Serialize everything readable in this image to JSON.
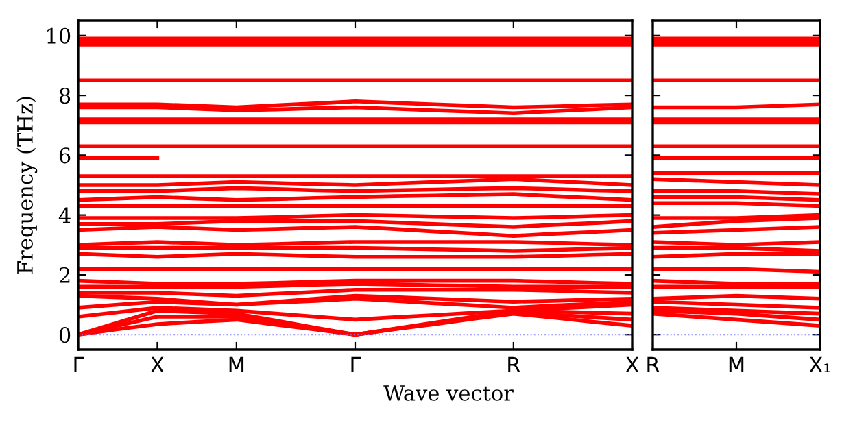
{
  "chart_data": [
    {
      "type": "line",
      "ylabel": "Frequency (THz)",
      "xlabel": "Wave vector",
      "categories": [
        "Γ",
        null,
        "X",
        null,
        "M",
        null,
        null,
        "Γ",
        null,
        null,
        null,
        "R",
        null,
        null,
        "X"
      ],
      "ylim": [
        -0.5,
        10.5
      ],
      "yticks": [
        0,
        2,
        4,
        6,
        8,
        10
      ],
      "marker": "none",
      "line_style": "solid",
      "grid": false,
      "legend": false,
      "ref_lines": [
        {
          "axis": "y",
          "value": 0,
          "color": "#8080ff",
          "line_style": "dotted"
        }
      ],
      "series": [
        {
          "color": "#ff0000",
          "values": [
            0,
            0.18,
            0.35,
            0.43,
            0.5,
            0.33,
            0.17,
            0,
            0.18,
            0.35,
            0.53,
            0.7,
            0.57,
            0.43,
            0.3
          ]
        },
        {
          "color": "#ff0000",
          "values": [
            0,
            0.3,
            0.6,
            0.6,
            0.6,
            0.4,
            0.2,
            0,
            0.19,
            0.38,
            0.56,
            0.75,
            0.67,
            0.58,
            0.5
          ]
        },
        {
          "color": "#ff0000",
          "values": [
            0,
            0.4,
            0.8,
            0.75,
            0.7,
            0.47,
            0.23,
            0,
            0.2,
            0.4,
            0.6,
            0.8,
            0.77,
            0.73,
            0.7
          ]
        },
        {
          "color": "#ff0000",
          "values": [
            0.6,
            0.75,
            0.9,
            0.85,
            0.8,
            0.7,
            0.6,
            0.5,
            0.58,
            0.65,
            0.73,
            0.8,
            0.87,
            0.93,
            1.0
          ]
        },
        {
          "color": "#ff0000",
          "values": [
            0.9,
            1.0,
            1.1,
            1.05,
            1.0,
            1.07,
            1.13,
            1.2,
            1.13,
            1.05,
            0.98,
            0.9,
            0.97,
            1.03,
            1.1
          ]
        },
        {
          "color": "#ff0000",
          "values": [
            1.3,
            1.25,
            1.2,
            1.1,
            1.0,
            1.1,
            1.2,
            1.3,
            1.25,
            1.2,
            1.15,
            1.1,
            1.13,
            1.17,
            1.2
          ]
        },
        {
          "color": "#ff0000",
          "values": [
            1.4,
            1.4,
            1.4,
            1.35,
            1.3,
            1.37,
            1.43,
            1.5,
            1.5,
            1.5,
            1.5,
            1.5,
            1.47,
            1.43,
            1.4
          ]
        },
        {
          "color": "#ff0000",
          "values": [
            1.6,
            1.6,
            1.6,
            1.6,
            1.6,
            1.63,
            1.67,
            1.7,
            1.68,
            1.65,
            1.63,
            1.6,
            1.6,
            1.6,
            1.6
          ]
        },
        {
          "color": "#ff0000",
          "values": [
            1.8,
            1.75,
            1.7,
            1.7,
            1.7,
            1.73,
            1.77,
            1.8,
            1.8,
            1.8,
            1.8,
            1.8,
            1.77,
            1.73,
            1.7
          ]
        },
        {
          "color": "#ff0000",
          "values": [
            2.2,
            2.2,
            2.2,
            2.2,
            2.2,
            2.2,
            2.2,
            2.2,
            2.2,
            2.2,
            2.2,
            2.2,
            2.2,
            2.2,
            2.2
          ]
        },
        {
          "color": "#ff0000",
          "values": [
            2.7,
            2.65,
            2.6,
            2.65,
            2.7,
            2.67,
            2.63,
            2.6,
            2.6,
            2.6,
            2.6,
            2.6,
            2.63,
            2.67,
            2.7
          ]
        },
        {
          "color": "#ff0000",
          "values": [
            2.9,
            2.9,
            2.9,
            2.9,
            2.9,
            2.9,
            2.9,
            2.9,
            2.88,
            2.85,
            2.83,
            2.8,
            2.83,
            2.87,
            2.9
          ]
        },
        {
          "color": "#ff0000",
          "values": [
            3.0,
            3.05,
            3.1,
            3.05,
            3.0,
            3.03,
            3.07,
            3.1,
            3.1,
            3.1,
            3.1,
            3.1,
            3.07,
            3.03,
            3.0
          ]
        },
        {
          "color": "#ff0000",
          "values": [
            3.5,
            3.55,
            3.6,
            3.55,
            3.5,
            3.53,
            3.57,
            3.6,
            3.53,
            3.45,
            3.38,
            3.3,
            3.37,
            3.43,
            3.5
          ]
        },
        {
          "color": "#ff0000",
          "values": [
            3.7,
            3.7,
            3.7,
            3.75,
            3.8,
            3.8,
            3.8,
            3.8,
            3.75,
            3.7,
            3.65,
            3.6,
            3.67,
            3.73,
            3.8
          ]
        },
        {
          "color": "#ff0000",
          "values": [
            3.9,
            3.9,
            3.9,
            3.9,
            3.9,
            3.93,
            3.97,
            4.0,
            3.98,
            3.95,
            3.93,
            3.9,
            3.93,
            3.97,
            4.0
          ]
        },
        {
          "color": "#ff0000",
          "values": [
            4.3,
            4.3,
            4.3,
            4.3,
            4.3,
            4.3,
            4.3,
            4.3,
            4.3,
            4.3,
            4.3,
            4.3,
            4.3,
            4.3,
            4.3
          ]
        },
        {
          "color": "#ff0000",
          "values": [
            4.5,
            4.55,
            4.6,
            4.55,
            4.5,
            4.53,
            4.57,
            4.6,
            4.63,
            4.65,
            4.68,
            4.7,
            4.63,
            4.57,
            4.5
          ]
        },
        {
          "color": "#ff0000",
          "values": [
            4.8,
            4.8,
            4.8,
            4.85,
            4.9,
            4.87,
            4.83,
            4.8,
            4.83,
            4.85,
            4.88,
            4.9,
            4.87,
            4.83,
            4.8
          ]
        },
        {
          "color": "#ff0000",
          "values": [
            5.0,
            5.0,
            5.0,
            5.05,
            5.1,
            5.07,
            5.03,
            5.0,
            5.05,
            5.1,
            5.15,
            5.2,
            5.13,
            5.07,
            5.0
          ]
        },
        {
          "color": "#ff0000",
          "values": [
            5.3,
            5.3,
            5.3,
            5.3,
            5.3,
            5.3,
            5.3,
            5.3,
            5.3,
            5.3,
            5.3,
            5.3,
            5.3,
            5.3,
            5.3
          ]
        },
        {
          "color": "#ff0000",
          "values": [
            5.9,
            5.9,
            5.9,
            null,
            null,
            null,
            null,
            null,
            null,
            null,
            null,
            null,
            null,
            null,
            null
          ]
        },
        {
          "color": "#ff0000",
          "values": [
            6.3,
            6.3,
            6.3,
            6.3,
            6.3,
            6.3,
            6.3,
            6.3,
            6.3,
            6.3,
            6.3,
            6.3,
            6.3,
            6.3,
            6.3
          ]
        },
        {
          "color": "#ff0000",
          "values": [
            7.1,
            7.1,
            7.1,
            7.1,
            7.1,
            7.1,
            7.1,
            7.1,
            7.1,
            7.1,
            7.1,
            7.1,
            7.1,
            7.1,
            7.1
          ]
        },
        {
          "color": "#ff0000",
          "values": [
            7.2,
            7.2,
            7.2,
            7.2,
            7.2,
            7.2,
            7.2,
            7.2,
            7.2,
            7.2,
            7.2,
            7.2,
            7.2,
            7.2,
            7.2
          ]
        },
        {
          "color": "#ff0000",
          "values": [
            7.6,
            7.6,
            7.6,
            7.55,
            7.5,
            7.53,
            7.57,
            7.6,
            7.55,
            7.5,
            7.45,
            7.4,
            7.47,
            7.53,
            7.6
          ]
        },
        {
          "color": "#ff0000",
          "values": [
            7.7,
            7.7,
            7.7,
            7.65,
            7.6,
            7.67,
            7.73,
            7.8,
            7.75,
            7.7,
            7.65,
            7.6,
            7.63,
            7.67,
            7.7
          ]
        },
        {
          "color": "#ff0000",
          "values": [
            8.5,
            8.5,
            8.5,
            8.5,
            8.5,
            8.5,
            8.5,
            8.5,
            8.5,
            8.5,
            8.5,
            8.5,
            8.5,
            8.5,
            8.5
          ]
        },
        {
          "color": "#ff0000",
          "values": [
            9.7,
            9.7,
            9.7,
            9.7,
            9.7,
            9.7,
            9.7,
            9.7,
            9.7,
            9.7,
            9.7,
            9.7,
            9.7,
            9.7,
            9.7
          ]
        },
        {
          "color": "#ff0000",
          "values": [
            9.8,
            9.8,
            9.8,
            9.8,
            9.8,
            9.8,
            9.8,
            9.8,
            9.8,
            9.8,
            9.8,
            9.8,
            9.8,
            9.8,
            9.8
          ]
        },
        {
          "color": "#ff0000",
          "values": [
            9.9,
            9.9,
            9.9,
            9.9,
            9.9,
            9.9,
            9.9,
            9.9,
            9.9,
            9.9,
            9.9,
            9.9,
            9.9,
            9.9,
            9.9
          ]
        }
      ]
    },
    {
      "type": "line",
      "categories": [
        "R",
        "M",
        "X₁"
      ],
      "ylim": [
        -0.5,
        10.5
      ],
      "yticks": [
        0,
        2,
        4,
        6,
        8,
        10
      ],
      "tick_labels": "x",
      "marker": "none",
      "line_style": "solid",
      "grid": false,
      "legend": false,
      "ref_lines": [
        {
          "axis": "y",
          "value": 0,
          "color": "#8080ff",
          "line_style": "dotted"
        }
      ],
      "series": [
        {
          "color": "#ff0000",
          "values": [
            0.7,
            0.5,
            0.3
          ]
        },
        {
          "color": "#ff0000",
          "values": [
            0.8,
            0.7,
            0.5
          ]
        },
        {
          "color": "#ff0000",
          "values": [
            0.9,
            0.8,
            0.7
          ]
        },
        {
          "color": "#ff0000",
          "values": [
            1.1,
            1.0,
            0.9
          ]
        },
        {
          "color": "#ff0000",
          "values": [
            1.2,
            1.3,
            1.2
          ]
        },
        {
          "color": "#ff0000",
          "values": [
            1.6,
            1.6,
            1.6
          ]
        },
        {
          "color": "#ff0000",
          "values": [
            1.8,
            1.7,
            1.7
          ]
        },
        {
          "color": "#ff0000",
          "values": [
            2.2,
            2.2,
            2.1
          ]
        },
        {
          "color": "#ff0000",
          "values": [
            2.6,
            2.7,
            2.7
          ]
        },
        {
          "color": "#ff0000",
          "values": [
            2.9,
            2.9,
            2.8
          ]
        },
        {
          "color": "#ff0000",
          "values": [
            3.1,
            3.0,
            3.1
          ]
        },
        {
          "color": "#ff0000",
          "values": [
            3.4,
            3.5,
            3.6
          ]
        },
        {
          "color": "#ff0000",
          "values": [
            3.6,
            3.8,
            3.9
          ]
        },
        {
          "color": "#ff0000",
          "values": [
            3.9,
            3.9,
            4.0
          ]
        },
        {
          "color": "#ff0000",
          "values": [
            4.4,
            4.4,
            4.3
          ]
        },
        {
          "color": "#ff0000",
          "values": [
            4.6,
            4.6,
            4.5
          ]
        },
        {
          "color": "#ff0000",
          "values": [
            4.8,
            4.8,
            4.7
          ]
        },
        {
          "color": "#ff0000",
          "values": [
            5.2,
            5.1,
            5.0
          ]
        },
        {
          "color": "#ff0000",
          "values": [
            5.4,
            5.4,
            5.4
          ]
        },
        {
          "color": "#ff0000",
          "values": [
            5.9,
            5.9,
            5.9
          ]
        },
        {
          "color": "#ff0000",
          "values": [
            6.3,
            6.3,
            6.3
          ]
        },
        {
          "color": "#ff0000",
          "values": [
            7.1,
            7.1,
            7.1
          ]
        },
        {
          "color": "#ff0000",
          "values": [
            7.2,
            7.2,
            7.2
          ]
        },
        {
          "color": "#ff0000",
          "values": [
            7.6,
            7.6,
            7.7
          ]
        },
        {
          "color": "#ff0000",
          "values": [
            8.5,
            8.5,
            8.5
          ]
        },
        {
          "color": "#ff0000",
          "values": [
            9.7,
            9.7,
            9.7
          ]
        },
        {
          "color": "#ff0000",
          "values": [
            9.8,
            9.8,
            9.8
          ]
        },
        {
          "color": "#ff0000",
          "values": [
            9.9,
            9.9,
            9.9
          ]
        }
      ]
    }
  ]
}
